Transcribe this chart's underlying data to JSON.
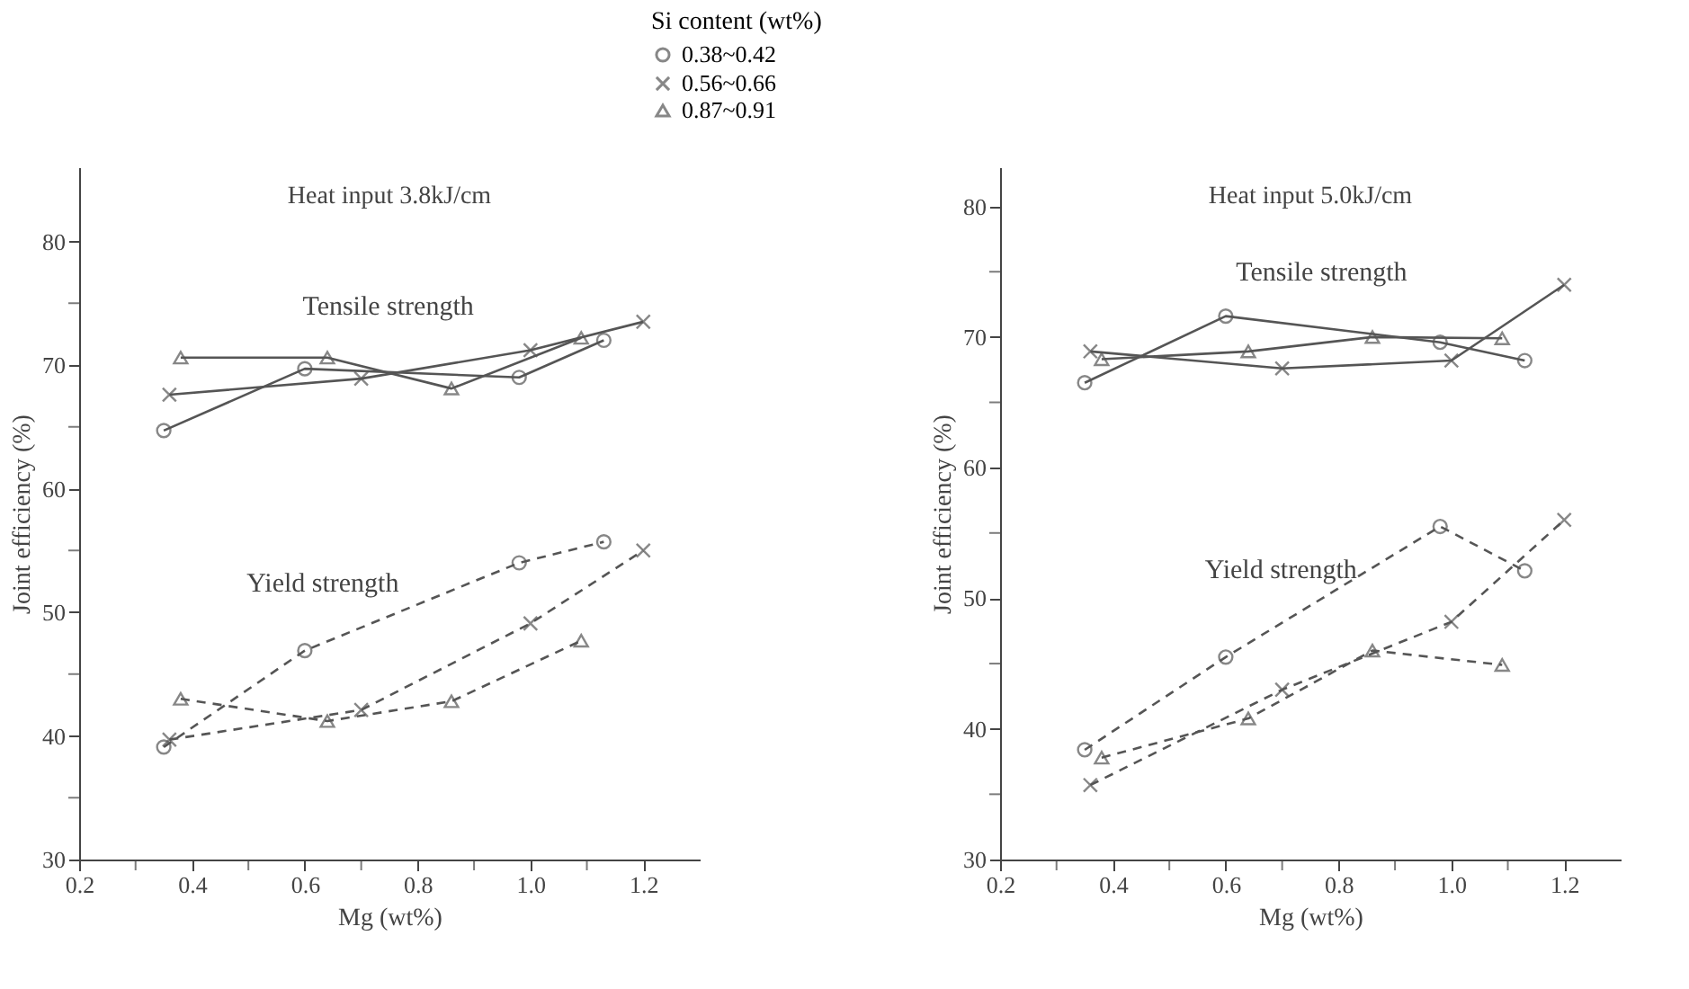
{
  "chart_data": [
    {
      "type": "line",
      "title": "Heat input 3.8kJ/cm",
      "xlabel": "Mg (wt%)",
      "ylabel": "Joint efficiency (%)",
      "legend_title": "Si content (wt%)",
      "legend": "top right",
      "grid": false,
      "xlim": [
        0.2,
        1.3
      ],
      "xticks": [
        0.2,
        {
          "value": 0.3,
          "label": null
        },
        0.4,
        {
          "value": 0.5,
          "label": null
        },
        0.6,
        {
          "value": 0.7,
          "label": null
        },
        0.8,
        {
          "value": 0.9,
          "label": null
        },
        {
          "value": 1,
          "label": "1.0"
        },
        {
          "value": 1.1,
          "label": null
        },
        1.2
      ],
      "ylim": [
        30,
        86
      ],
      "yticks": [
        30,
        {
          "value": 35,
          "label": null
        },
        40,
        {
          "value": 45,
          "label": null
        },
        50,
        {
          "value": 55,
          "label": null
        },
        60,
        {
          "value": 65,
          "label": null
        },
        70,
        {
          "value": 75,
          "label": null
        },
        80
      ],
      "annotations": [
        "Tensile strength",
        "Yield strength"
      ],
      "series": [
        {
          "name": "0.38~0.42",
          "color": "#555555",
          "marker": "circle",
          "line_style": "solid",
          "x": [
            0.35,
            0.6,
            0.98,
            1.13
          ],
          "values": [
            64.7,
            69.7,
            69.0,
            72.0
          ]
        },
        {
          "name": "0.56~0.66",
          "color": "#555555",
          "marker": "cross",
          "line_style": "solid",
          "x": [
            0.36,
            0.7,
            1.0,
            1.2
          ],
          "values": [
            67.6,
            68.9,
            71.2,
            73.5
          ]
        },
        {
          "name": "0.87~0.91",
          "color": "#555555",
          "marker": "triangle",
          "line_style": "solid",
          "x": [
            0.38,
            0.64,
            0.86,
            1.09
          ],
          "values": [
            70.6,
            70.6,
            68.1,
            72.2
          ]
        },
        {
          "color": "#555555",
          "marker": "circle",
          "line_style": "dashed",
          "x": [
            0.35,
            0.6,
            0.98,
            1.13
          ],
          "values": [
            39.1,
            46.9,
            54.0,
            55.7
          ]
        },
        {
          "color": "#555555",
          "marker": "cross",
          "line_style": "dashed",
          "x": [
            0.36,
            0.7,
            1.0,
            1.2
          ],
          "values": [
            39.7,
            42.1,
            49.1,
            55.0
          ]
        },
        {
          "color": "#555555",
          "marker": "triangle",
          "line_style": "dashed",
          "x": [
            0.38,
            0.64,
            0.86,
            1.09
          ],
          "values": [
            43.0,
            41.2,
            42.8,
            47.7
          ]
        }
      ]
    },
    {
      "type": "line",
      "title": "Heat input 5.0kJ/cm",
      "xlabel": "Mg (wt%)",
      "ylabel": "Joint efficiency (%)",
      "legend": false,
      "grid": false,
      "xlim": [
        0.2,
        1.3
      ],
      "xticks": [
        0.2,
        {
          "value": 0.3,
          "label": null
        },
        0.4,
        {
          "value": 0.5,
          "label": null
        },
        0.6,
        {
          "value": 0.7,
          "label": null
        },
        0.8,
        {
          "value": 0.9,
          "label": null
        },
        {
          "value": 1,
          "label": "1.0"
        },
        {
          "value": 1.1,
          "label": null
        },
        1.2
      ],
      "ylim": [
        30,
        83
      ],
      "yticks": [
        30,
        {
          "value": 35,
          "label": null
        },
        40,
        {
          "value": 45,
          "label": null
        },
        50,
        {
          "value": 55,
          "label": null
        },
        60,
        {
          "value": 65,
          "label": null
        },
        70,
        {
          "value": 75,
          "label": null
        },
        80
      ],
      "annotations": [
        "Tensile strength",
        "Yield strength"
      ],
      "series": [
        {
          "color": "#555555",
          "marker": "circle",
          "line_style": "solid",
          "x": [
            0.35,
            0.6,
            0.98,
            1.13
          ],
          "values": [
            66.5,
            71.6,
            69.6,
            68.2
          ]
        },
        {
          "color": "#555555",
          "marker": "cross",
          "line_style": "solid",
          "x": [
            0.36,
            0.7,
            1.0,
            1.2
          ],
          "values": [
            68.9,
            67.6,
            68.2,
            74.0
          ]
        },
        {
          "color": "#555555",
          "marker": "triangle",
          "line_style": "solid",
          "x": [
            0.38,
            0.64,
            0.86,
            1.09
          ],
          "values": [
            68.3,
            68.9,
            70.0,
            69.9
          ]
        },
        {
          "color": "#555555",
          "marker": "circle",
          "line_style": "dashed",
          "x": [
            0.35,
            0.6,
            0.98,
            1.13
          ],
          "values": [
            38.4,
            45.5,
            55.5,
            52.1
          ]
        },
        {
          "color": "#555555",
          "marker": "cross",
          "line_style": "dashed",
          "x": [
            0.36,
            0.7,
            1.0,
            1.2
          ],
          "values": [
            35.7,
            43.0,
            48.2,
            56.0
          ]
        },
        {
          "color": "#555555",
          "marker": "triangle",
          "line_style": "dashed",
          "x": [
            0.38,
            0.64,
            0.86,
            1.09
          ],
          "values": [
            37.8,
            40.8,
            46.0,
            44.9
          ]
        }
      ]
    }
  ]
}
